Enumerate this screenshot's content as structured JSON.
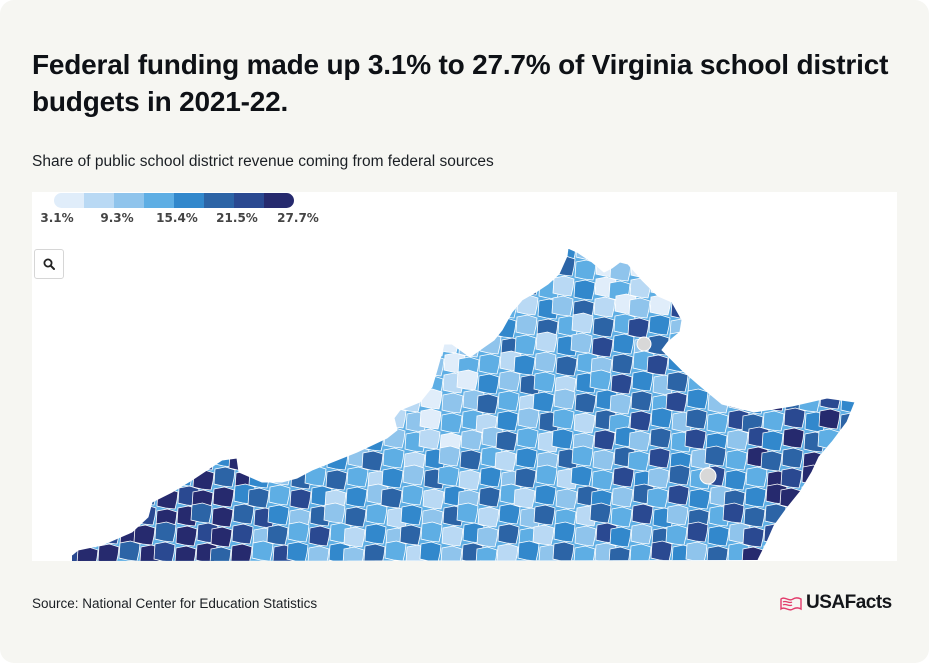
{
  "title": "Federal funding made up 3.1% to 27.7% of Virginia school district budgets in 2021-22.",
  "subtitle": "Share of public school district revenue coming from federal sources",
  "source": "Source: National Center for Education Statistics",
  "logo": {
    "text": "USAFacts",
    "icon": "us-flag-icon"
  },
  "zoom_button": {
    "icon": "search-icon"
  },
  "legend": {
    "colors": [
      "#e0edfa",
      "#b9d9f4",
      "#8fc4ec",
      "#5eaee4",
      "#3288cc",
      "#2c64a6",
      "#2a4991",
      "#262a6e"
    ],
    "labels": [
      "3.1%",
      "9.3%",
      "15.4%",
      "21.5%",
      "27.7%"
    ],
    "min": 3.1,
    "max": 27.7
  },
  "map": {
    "state": "Virginia",
    "color_bins": [
      "#e0edfa",
      "#b9d9f4",
      "#8fc4ec",
      "#5eaee4",
      "#3288cc",
      "#2c64a6",
      "#2a4991",
      "#262a6e"
    ],
    "no_data_color": "#d8d8d8"
  }
}
